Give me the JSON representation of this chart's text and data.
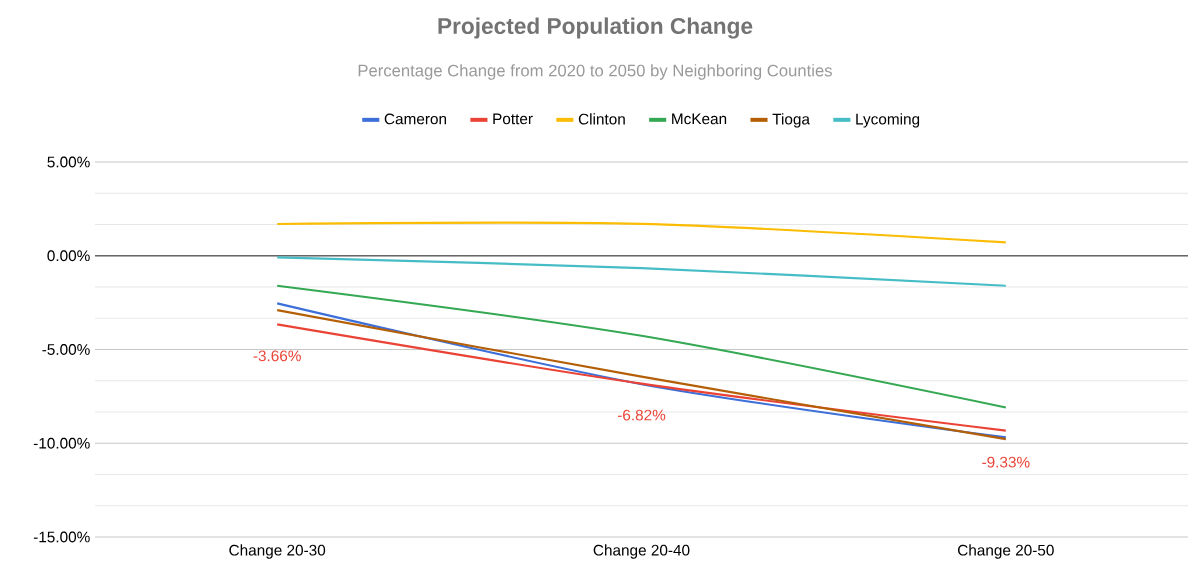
{
  "chart_data": {
    "type": "line",
    "title": "Projected Population Change",
    "subtitle": "Percentage Change from 2020 to 2050 by Neighboring Counties",
    "categories": [
      "Change 20-30",
      "Change 20-40",
      "Change 20-50"
    ],
    "series": [
      {
        "name": "Cameron",
        "color": "#3c6fd8",
        "values": [
          -2.54,
          -6.85,
          -9.69
        ]
      },
      {
        "name": "Potter",
        "color": "#ea4335",
        "values": [
          -3.66,
          -6.82,
          -9.33
        ],
        "value_labels": [
          "-3.66%",
          "-6.82%",
          "-9.33%"
        ]
      },
      {
        "name": "Clinton",
        "color": "#fbbc04",
        "values": [
          1.69,
          1.7,
          0.71
        ]
      },
      {
        "name": "McKean",
        "color": "#34a853",
        "values": [
          -1.6,
          -4.27,
          -8.09
        ]
      },
      {
        "name": "Tioga",
        "color": "#b45f06",
        "values": [
          -2.9,
          -6.45,
          -9.78
        ]
      },
      {
        "name": "Lycoming",
        "color": "#46bdc6",
        "values": [
          -0.09,
          -0.66,
          -1.6
        ]
      }
    ],
    "ylim": [
      -15,
      5
    ],
    "yticks": [
      {
        "value": -15,
        "label": "-15.00%"
      },
      {
        "value": -10,
        "label": "-10.00%"
      },
      {
        "value": -5,
        "label": "-5.00%"
      },
      {
        "value": 0,
        "label": "0.00%"
      },
      {
        "value": 5,
        "label": "5.00%"
      }
    ],
    "ref_lines": [
      {
        "axis": "y",
        "value": 0,
        "color": "#666666"
      }
    ],
    "grid": "y",
    "legend": "top",
    "marker": "none",
    "line_style": "solid"
  }
}
